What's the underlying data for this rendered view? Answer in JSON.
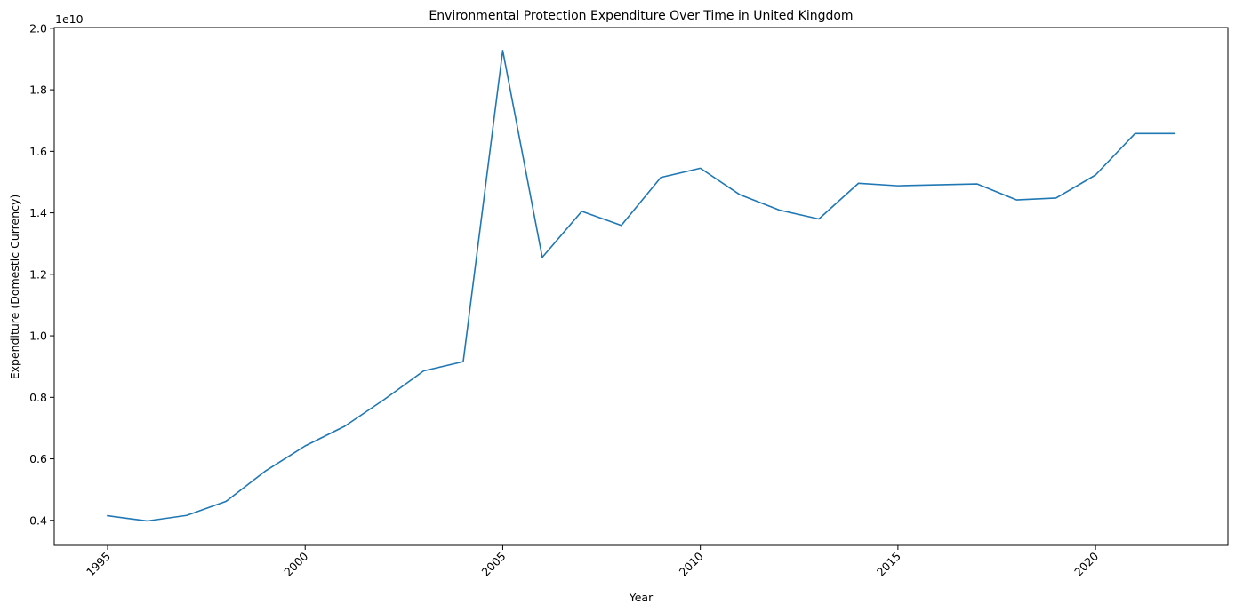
{
  "chart_data": {
    "type": "line",
    "title": "Environmental Protection Expenditure Over Time in United Kingdom",
    "xlabel": "Year",
    "ylabel": "Expenditure (Domestic Currency)",
    "y_offset_label": "1e10",
    "x_ticks": [
      1995,
      2000,
      2005,
      2010,
      2015,
      2020
    ],
    "y_ticks": [
      "0.4",
      "0.6",
      "0.8",
      "1.0",
      "1.2",
      "1.4",
      "1.6",
      "1.8",
      "2.0"
    ],
    "y_tick_values": [
      0.4,
      0.6,
      0.8,
      1.0,
      1.2,
      1.4,
      1.6,
      1.8,
      2.0
    ],
    "y_multiplier": 10000000000,
    "xlim": [
      1993.65,
      2023.35
    ],
    "ylim": [
      0.3185,
      2.0025
    ],
    "grid": false,
    "legend": "none",
    "series": [
      {
        "color": "#1f77b4",
        "x": [
          1995,
          1996,
          1997,
          1998,
          1999,
          2000,
          2001,
          2002,
          2003,
          2004,
          2005,
          2006,
          2007,
          2008,
          2009,
          2010,
          2011,
          2012,
          2013,
          2014,
          2015,
          2016,
          2017,
          2018,
          2019,
          2020,
          2021,
          2022
        ],
        "values": [
          0.415,
          0.398,
          0.416,
          0.462,
          0.561,
          0.642,
          0.706,
          0.793,
          0.886,
          0.916,
          1.928,
          1.255,
          1.405,
          1.359,
          1.515,
          1.545,
          1.459,
          1.409,
          1.38,
          1.496,
          1.488,
          1.491,
          1.494,
          1.442,
          1.448,
          1.523,
          1.658,
          1.658
        ]
      }
    ]
  }
}
